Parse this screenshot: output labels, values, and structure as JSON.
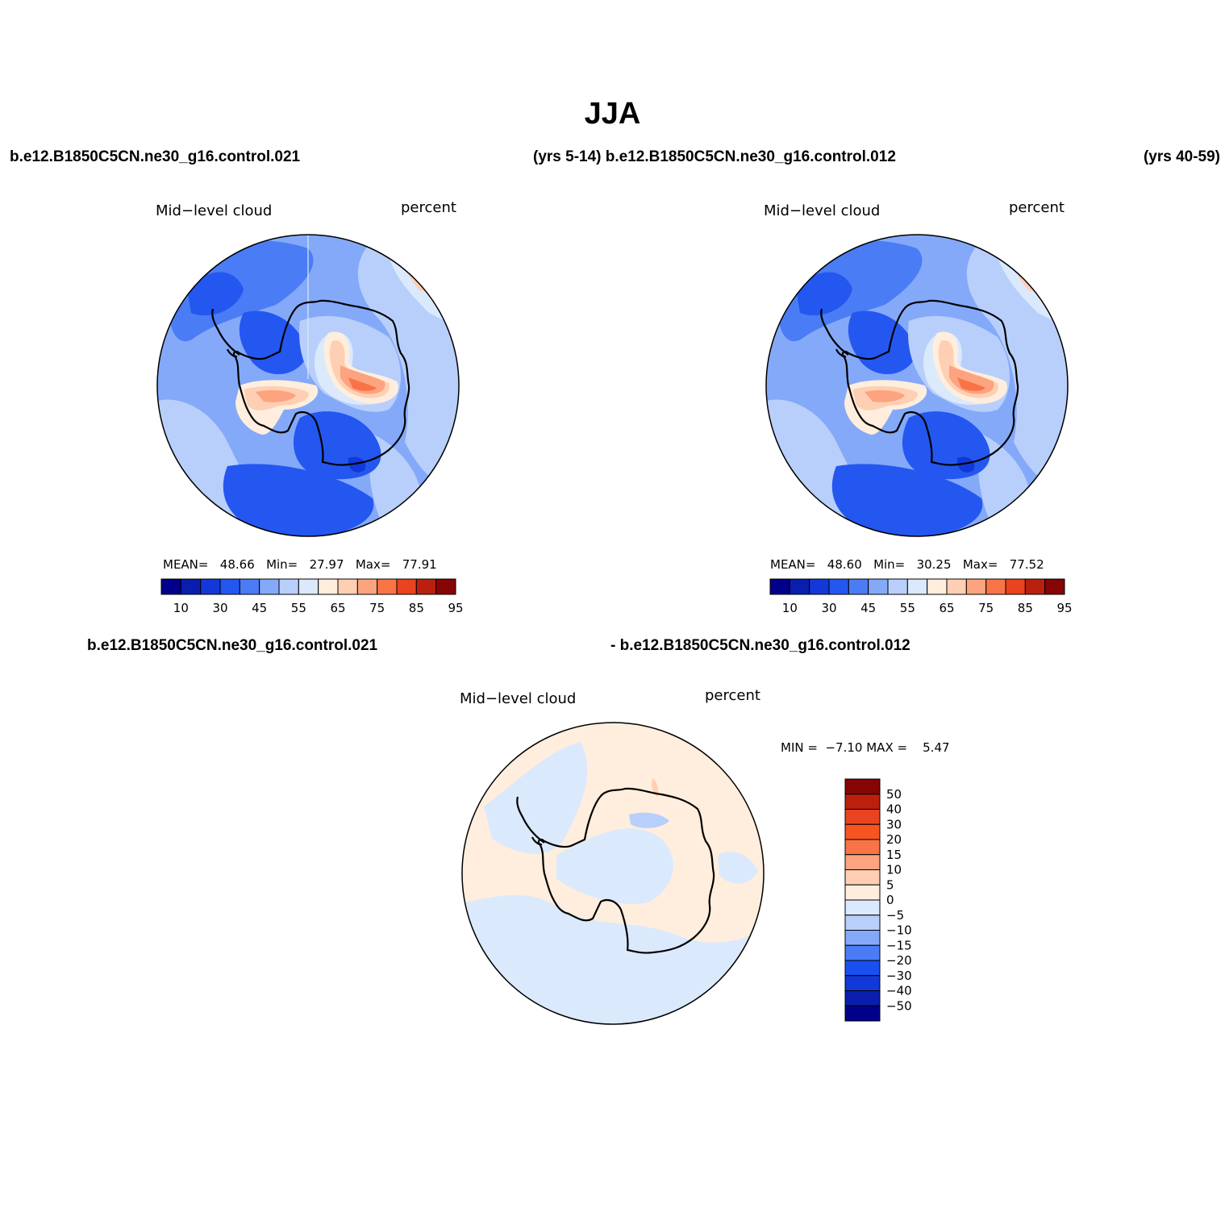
{
  "figure": {
    "title": "JJA",
    "top_left_run": "b.e12.B1850C5CN.ne30_g16.control.021",
    "top_middle_label": "(yrs 5-14) b.e12.B1850C5CN.ne30_g16.control.012",
    "top_right_label": "(yrs 40-59)",
    "diff_left_run": "b.e12.B1850C5CN.ne30_g16.control.021",
    "diff_right_run": "- b.e12.B1850C5CN.ne30_g16.control.012"
  },
  "panels": [
    {
      "variable": "Mid−level cloud",
      "units": "percent",
      "mean_label": "MEAN=",
      "mean": "48.66",
      "min_label": "Min=",
      "min": "27.97",
      "max_label": "Max=",
      "max": "77.91"
    },
    {
      "variable": "Mid−level cloud",
      "units": "percent",
      "mean_label": "MEAN=",
      "mean": "48.60",
      "min_label": "Min=",
      "min": "30.25",
      "max_label": "Max=",
      "max": "77.52"
    }
  ],
  "diff_panel": {
    "variable": "Mid−level cloud",
    "units": "percent",
    "min_label": "MIN =",
    "min": "−7.10",
    "max_label": "MAX =",
    "max": "5.47"
  },
  "colorbar_main": {
    "labels": [
      "10",
      "30",
      "45",
      "55",
      "65",
      "75",
      "85",
      "95"
    ],
    "colors": [
      "#00008a",
      "#0a1eae",
      "#1238d8",
      "#2457f0",
      "#4a7cf5",
      "#84a9f8",
      "#b8cffb",
      "#dbe9fd",
      "#ffeedd",
      "#ffcfb4",
      "#fda37f",
      "#f87446",
      "#e9431f",
      "#bb200f",
      "#860505"
    ]
  },
  "colorbar_diff": {
    "labels": [
      "50",
      "40",
      "30",
      "20",
      "15",
      "10",
      "5",
      "0",
      "−5",
      "−10",
      "−15",
      "−20",
      "−30",
      "−40",
      "−50"
    ],
    "colors": [
      "#860505",
      "#bb200f",
      "#e9431f",
      "#f8541f",
      "#f87446",
      "#fda37f",
      "#ffcfb4",
      "#ffeedd",
      "#dbe9fd",
      "#b8cffb",
      "#84a9f8",
      "#4a7cf5",
      "#1a4ff0",
      "#1238d8",
      "#0a1eae",
      "#00008a"
    ]
  },
  "map_colors": {
    "ocean_base": "#84a9f8",
    "deep_blue": "#2457f0",
    "mid_blue": "#4a7cf5",
    "light_blue": "#b8cffb",
    "pale_blue": "#dbe9fd",
    "pale_peach": "#ffeedd",
    "peach": "#ffcfb4",
    "salmon": "#fda37f",
    "orange": "#f87446",
    "diff_base": "#ffeedd",
    "diff_blue": "#dbe9fd"
  }
}
